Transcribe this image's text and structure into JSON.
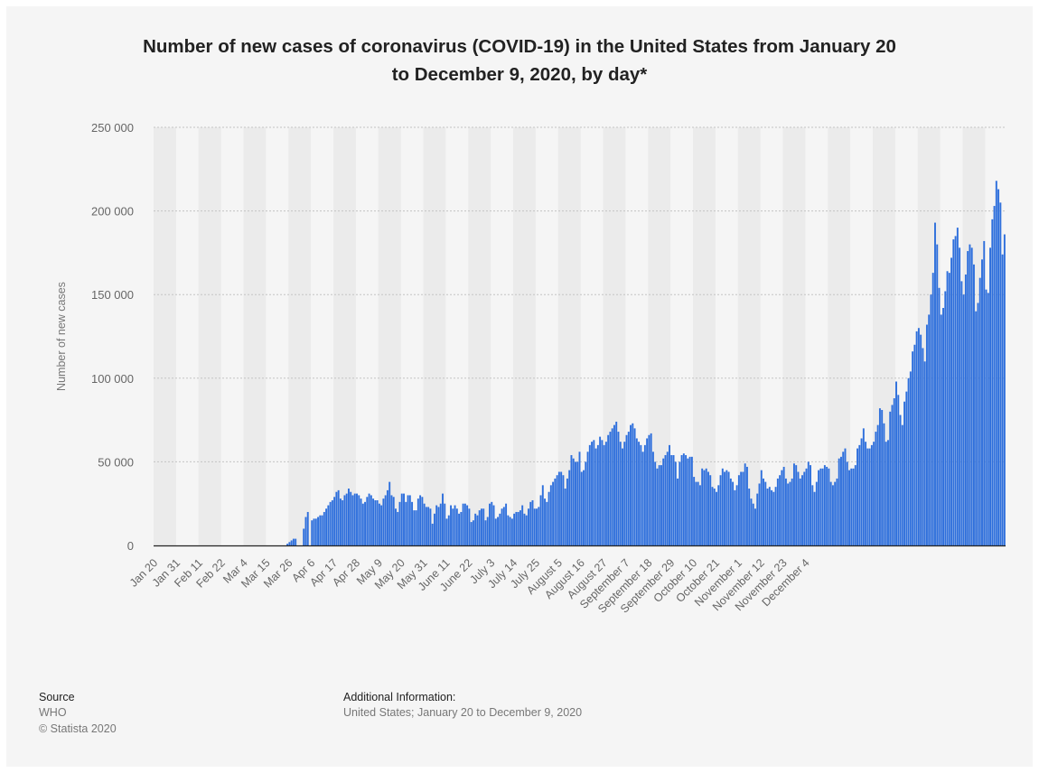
{
  "chart_data": {
    "type": "bar",
    "title_line1": "Number of new cases of coronavirus (COVID-19) in the United States from January 20",
    "title_line2": "to December 9, 2020, by day*",
    "ylabel": "Number of new cases",
    "xlabel": "",
    "ylim": [
      0,
      250000
    ],
    "yticks": [
      0,
      50000,
      100000,
      150000,
      200000,
      250000
    ],
    "ytick_labels": [
      "0",
      "50 000",
      "100 000",
      "150 000",
      "200 000",
      "250 000"
    ],
    "x_tick_labels": [
      "Jan 20",
      "Jan 31",
      "Feb 11",
      "Feb 22",
      "Mar 4",
      "Mar 15",
      "Mar 26",
      "Apr 6",
      "Apr 17",
      "Apr 28",
      "May 9",
      "May 20",
      "May 31",
      "June 11",
      "June 22",
      "July 3",
      "July 14",
      "July 25",
      "August 5",
      "August 16",
      "August 27",
      "September 7",
      "September 18",
      "September 29",
      "October 10",
      "October 21",
      "November 1",
      "November 12",
      "November 23",
      "December 4"
    ],
    "x_tick_interval_days": 11,
    "first_day": "2020-01-20",
    "last_day": "2020-12-09",
    "grid": true,
    "bar_color": "#2e6fdc",
    "values": [
      0,
      0,
      0,
      0,
      0,
      0,
      0,
      0,
      0,
      0,
      0,
      0,
      0,
      0,
      0,
      0,
      0,
      0,
      0,
      0,
      0,
      0,
      0,
      0,
      0,
      0,
      0,
      0,
      0,
      0,
      0,
      0,
      0,
      0,
      0,
      0,
      0,
      0,
      0,
      0,
      0,
      0,
      0,
      0,
      0,
      0,
      0,
      0,
      0,
      0,
      0,
      0,
      0,
      0,
      0,
      0,
      0,
      0,
      0,
      0,
      0,
      0,
      0,
      0,
      0,
      1000,
      2000,
      3000,
      4000,
      4000,
      0,
      0,
      0,
      10000,
      17000,
      20000,
      0,
      15000,
      16000,
      16000,
      17000,
      18000,
      18000,
      20000,
      22000,
      24000,
      26000,
      27000,
      29000,
      32000,
      33000,
      28000,
      27000,
      30000,
      31000,
      34000,
      32000,
      30000,
      31000,
      31000,
      30000,
      28000,
      25000,
      26000,
      29000,
      31000,
      30000,
      28000,
      27000,
      27000,
      25000,
      24000,
      28000,
      30000,
      33000,
      38000,
      30000,
      29000,
      22000,
      20000,
      26000,
      31000,
      31000,
      26000,
      30000,
      30000,
      26000,
      21000,
      21000,
      28000,
      30000,
      29000,
      25000,
      23000,
      23000,
      22000,
      13000,
      19000,
      24000,
      23000,
      25000,
      31000,
      25000,
      16000,
      18000,
      24000,
      22000,
      24000,
      22000,
      19000,
      20000,
      25000,
      25000,
      24000,
      22000,
      14000,
      15000,
      19000,
      18000,
      21000,
      22000,
      22000,
      15000,
      17000,
      25000,
      26000,
      24000,
      16000,
      17000,
      19000,
      22000,
      23000,
      25000,
      18000,
      17000,
      16000,
      19000,
      20000,
      20000,
      21000,
      24000,
      19000,
      18000,
      22000,
      26000,
      27000,
      22000,
      22000,
      23000,
      30000,
      36000,
      28000,
      26000,
      32000,
      36000,
      38000,
      40000,
      42000,
      44000,
      44000,
      42000,
      34000,
      40000,
      45000,
      54000,
      52000,
      50000,
      50000,
      56000,
      44000,
      45000,
      50000,
      56000,
      60000,
      62000,
      63000,
      58000,
      60000,
      65000,
      63000,
      60000,
      62000,
      66000,
      68000,
      70000,
      72000,
      74000,
      68000,
      62000,
      58000,
      62000,
      66000,
      68000,
      72000,
      73000,
      70000,
      64000,
      62000,
      60000,
      56000,
      60000,
      64000,
      66000,
      67000,
      56000,
      50000,
      46000,
      48000,
      48000,
      52000,
      54000,
      56000,
      60000,
      54000,
      54000,
      50000,
      40000,
      50000,
      54000,
      55000,
      54000,
      52000,
      53000,
      53000,
      41000,
      38000,
      38000,
      36000,
      46000,
      45000,
      46000,
      44000,
      42000,
      35000,
      34000,
      32000,
      36000,
      42000,
      46000,
      44000,
      45000,
      44000,
      40000,
      38000,
      33000,
      36000,
      42000,
      44000,
      44000,
      49000,
      47000,
      34000,
      28000,
      25000,
      22000,
      31000,
      37000,
      45000,
      40000,
      38000,
      34000,
      35000,
      33000,
      32000,
      35000,
      40000,
      42000,
      45000,
      47000,
      40000,
      37000,
      38000,
      40000,
      49000,
      48000,
      44000,
      40000,
      42000,
      44000,
      46000,
      50000,
      48000,
      36000,
      32000,
      38000,
      45000,
      46000,
      46000,
      48000,
      47000,
      46000,
      38000,
      36000,
      38000,
      40000,
      52000,
      53000,
      56000,
      58000,
      50000,
      45000,
      46000,
      46000,
      48000,
      58000,
      60000,
      64000,
      70000,
      62000,
      58000,
      58000,
      60000,
      62000,
      68000,
      72000,
      82000,
      81000,
      73000,
      62000,
      63000,
      80000,
      84000,
      88000,
      98000,
      90000,
      78000,
      72000,
      86000,
      92000,
      100000,
      104000,
      116000,
      120000,
      128000,
      130000,
      126000,
      118000,
      110000,
      132000,
      138000,
      150000,
      163000,
      193000,
      180000,
      154000,
      138000,
      142000,
      152000,
      164000,
      163000,
      172000,
      183000,
      185000,
      190000,
      178000,
      158000,
      150000,
      162000,
      176000,
      180000,
      178000,
      168000,
      140000,
      145000,
      160000,
      171000,
      182000,
      153000,
      151000,
      178000,
      195000,
      203000,
      218000,
      213000,
      205000,
      174000,
      186000
    ]
  },
  "footer": {
    "source_heading": "Source",
    "source_name": "WHO",
    "copyright": "© Statista 2020",
    "info_heading": "Additional Information:",
    "info_text": "United States; January 20 to December 9, 2020"
  }
}
